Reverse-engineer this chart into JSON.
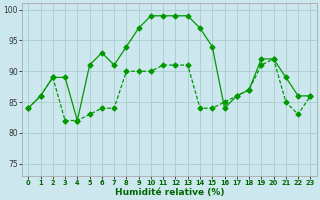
{
  "xlabel": "Humidité relative (%)",
  "bg_color": "#cce8ee",
  "grid_color": "#aacccc",
  "line_color": "#009900",
  "label_color": "#006600",
  "xlim": [
    -0.5,
    23.5
  ],
  "ylim": [
    73,
    101
  ],
  "yticks": [
    75,
    80,
    85,
    90,
    95,
    100
  ],
  "xticks": [
    0,
    1,
    2,
    3,
    4,
    5,
    6,
    7,
    8,
    9,
    10,
    11,
    12,
    13,
    14,
    15,
    16,
    17,
    18,
    19,
    20,
    21,
    22,
    23
  ],
  "series1_x": [
    0,
    1,
    2,
    3,
    4,
    5,
    6,
    7,
    8,
    9,
    10,
    11,
    12,
    13,
    14,
    15,
    16,
    17,
    18,
    19,
    20,
    21,
    22,
    23
  ],
  "series1_y": [
    84,
    86,
    89,
    89,
    82,
    91,
    93,
    91,
    94,
    97,
    99,
    99,
    99,
    99,
    97,
    94,
    84,
    86,
    87,
    92,
    92,
    89,
    86,
    86
  ],
  "series2_x": [
    0,
    1,
    2,
    3,
    4,
    5,
    6,
    7,
    8,
    9,
    10,
    11,
    12,
    13,
    14,
    15,
    16,
    17,
    18,
    19,
    20,
    21,
    22,
    23
  ],
  "series2_y": [
    84,
    86,
    89,
    82,
    82,
    83,
    84,
    84,
    90,
    90,
    90,
    91,
    91,
    91,
    84,
    84,
    85,
    86,
    87,
    91,
    92,
    85,
    83,
    86
  ],
  "markersize": 2.5,
  "linewidth": 0.9
}
